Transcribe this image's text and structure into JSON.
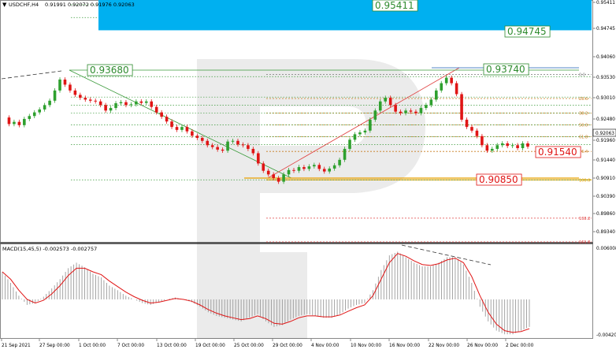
{
  "header": {
    "symbol_text": "USDCHF,H4",
    "ohlc_text": "0.91991 0.92072 0.91976 0.92063"
  },
  "macd": {
    "label": "MACD(15,45,5) -0.002573 -0.002757",
    "ticks": [
      "0.006008",
      "-0.004209"
    ]
  },
  "price_axis": {
    "ticks": [
      "0.95411",
      "0.94745",
      "0.94060",
      "0.93530",
      "0.93010",
      "0.92480",
      "0.91960",
      "0.91440",
      "0.90910",
      "0.90390",
      "0.89860",
      "0.89340"
    ],
    "current_price": "0.92063"
  },
  "time_axis": {
    "labels": [
      "21 Sep 2021",
      "27 Sep 00:00",
      "1 Oct 00:00",
      "7 Oct 00:00",
      "13 Oct 00:00",
      "19 Oct 00:00",
      "25 Oct 00:00",
      "29 Oct 00:00",
      "4 Nov 00:00",
      "10 Nov 00:00",
      "16 Nov 00:00",
      "22 Nov 00:00",
      "26 Nov 00:00",
      "2 Dec 00:00"
    ]
  },
  "annotations": {
    "blue_zone_top": "0.95411",
    "blue_zone_bottom": "0.94745",
    "left_high": "0.93680",
    "right_high": "0.93740",
    "support": "0.91540",
    "low": "0.90850"
  },
  "fib_levels": [
    {
      "label": "0.0",
      "value": 0.9374
    },
    {
      "label": "23.6",
      "value": 0.9308
    },
    {
      "label": "38.2",
      "value": 0.9268
    },
    {
      "label": "50.0",
      "value": 0.9236
    },
    {
      "label": "61.8",
      "value": 0.9203
    },
    {
      "label": "76.4",
      "value": 0.9163
    },
    {
      "label": "100.0",
      "value": 0.9085
    },
    {
      "label": "138.2",
      "value": 0.898
    },
    {
      "label": "161.8",
      "value": 0.8915
    }
  ],
  "colors": {
    "bull": "#2ea02e",
    "bear": "#e01515",
    "zone": "#00b0f0",
    "signal": "#e01515",
    "histogram": "#9a9a9a"
  },
  "chart_data": {
    "type": "candlestick",
    "symbol": "USDCHF",
    "timeframe": "H4",
    "ylim": [
      0.8915,
      0.9578
    ],
    "price_path": [
      0.9256,
      0.9238,
      0.9244,
      0.9235,
      0.9252,
      0.926,
      0.927,
      0.9278,
      0.929,
      0.9302,
      0.933,
      0.936,
      0.9346,
      0.933,
      0.9318,
      0.931,
      0.9305,
      0.9302,
      0.93,
      0.929,
      0.9275,
      0.9282,
      0.9295,
      0.9298,
      0.929,
      0.9292,
      0.93,
      0.9296,
      0.93,
      0.9285,
      0.927,
      0.9258,
      0.9245,
      0.923,
      0.9222,
      0.923,
      0.9218,
      0.9206,
      0.92,
      0.9192,
      0.918,
      0.9175,
      0.9168,
      0.9165,
      0.919,
      0.9192,
      0.9182,
      0.918,
      0.917,
      0.9158,
      0.913,
      0.911,
      0.91,
      0.909,
      0.908,
      0.91,
      0.9112,
      0.911,
      0.912,
      0.9115,
      0.9122,
      0.9126,
      0.9115,
      0.9108,
      0.9116,
      0.9125,
      0.914,
      0.917,
      0.9195,
      0.921,
      0.9215,
      0.922,
      0.925,
      0.9275,
      0.93,
      0.931,
      0.929,
      0.9272,
      0.9268,
      0.9275,
      0.9272,
      0.9268,
      0.9282,
      0.929,
      0.9305,
      0.933,
      0.935,
      0.9365,
      0.935,
      0.932,
      0.925,
      0.923,
      0.922,
      0.9205,
      0.918,
      0.9165,
      0.917,
      0.918,
      0.9185,
      0.9178,
      0.918,
      0.9172,
      0.9185,
      0.9176
    ],
    "macd_range": [
      -0.004209,
      0.006008
    ],
    "macd_histogram": [
      0.003,
      0.0018,
      0.0004,
      -0.0006,
      -0.0004,
      0.0003,
      0.0012,
      0.0022,
      0.0034,
      0.004,
      0.0035,
      0.0028,
      0.0024,
      0.0015,
      0.001,
      0.0004,
      0.0,
      -0.0004,
      -0.0006,
      -0.0003,
      0.0,
      0.0002,
      0.0,
      -0.0003,
      -0.0008,
      -0.0014,
      -0.0018,
      -0.002,
      -0.0022,
      -0.0024,
      -0.002,
      -0.0016,
      -0.0024,
      -0.003,
      -0.0028,
      -0.0022,
      -0.0018,
      -0.0016,
      -0.0018,
      -0.002,
      -0.002,
      -0.0016,
      -0.001,
      -0.0006,
      -0.0004,
      0.001,
      0.0032,
      0.0048,
      0.0052,
      0.0046,
      0.004,
      0.0036,
      0.0036,
      0.004,
      0.0046,
      0.0046,
      0.0038,
      0.0018,
      -0.0008,
      -0.0024,
      -0.0034,
      -0.0038,
      -0.0038,
      -0.0034,
      -0.003
    ],
    "macd_signal": [
      0.003,
      0.0022,
      0.001,
      0.0,
      -0.0004,
      -0.0001,
      0.0006,
      0.0015,
      0.0026,
      0.0034,
      0.0034,
      0.003,
      0.0027,
      0.002,
      0.0014,
      0.0008,
      0.0003,
      -0.0001,
      -0.0004,
      -0.0003,
      -0.0001,
      0.0001,
      0.0,
      -0.0002,
      -0.0006,
      -0.0011,
      -0.0015,
      -0.0018,
      -0.002,
      -0.0022,
      -0.0021,
      -0.0018,
      -0.0021,
      -0.0026,
      -0.0027,
      -0.0024,
      -0.002,
      -0.0018,
      -0.0018,
      -0.0019,
      -0.0019,
      -0.0017,
      -0.0013,
      -0.0009,
      -0.0006,
      0.0004,
      0.0022,
      0.004,
      0.005,
      0.0047,
      0.0042,
      0.0038,
      0.0037,
      0.0039,
      0.0043,
      0.0045,
      0.004,
      0.0025,
      0.0004,
      -0.0014,
      -0.0027,
      -0.0034,
      -0.0036,
      -0.0035,
      -0.0032
    ]
  }
}
